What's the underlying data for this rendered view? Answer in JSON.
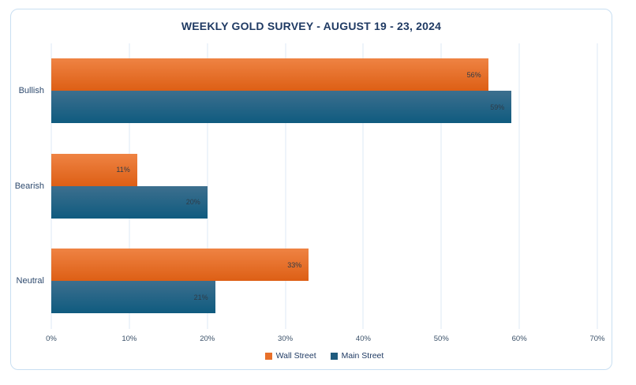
{
  "chart_data": {
    "type": "bar",
    "orientation": "horizontal",
    "title": "WEEKLY GOLD SURVEY - AUGUST 19 - 23, 2024",
    "categories": [
      "Bullish",
      "Bearish",
      "Neutral"
    ],
    "series": [
      {
        "name": "Wall Street",
        "values": [
          56,
          11,
          33
        ],
        "data_labels": [
          "56%",
          "11%",
          "33%"
        ],
        "color_top": "#EF8343",
        "color_bottom": "#DD5F15",
        "legend_color": "#E8702A"
      },
      {
        "name": "Main Street",
        "values": [
          59,
          20,
          21
        ],
        "data_labels": [
          "59%",
          "20%",
          "21%"
        ],
        "color_top": "#3D6F8E",
        "color_bottom": "#0F5B7F",
        "legend_color": "#1F5B7E"
      }
    ],
    "value_suffix": "%",
    "xlim": [
      0,
      70
    ],
    "x_ticks": [
      "0%",
      "10%",
      "20%",
      "30%",
      "40%",
      "50%",
      "60%",
      "70%"
    ],
    "grid": true,
    "legend_position": "bottom"
  },
  "colors": {
    "background": "#FFFFFF",
    "card_border": "#C9DFF2",
    "gridline": "#DCE9F5",
    "title": "#1F3A63",
    "category_label": "#2E4A6E",
    "axis_label": "#3A5068",
    "data_label": "#2F3B47"
  }
}
